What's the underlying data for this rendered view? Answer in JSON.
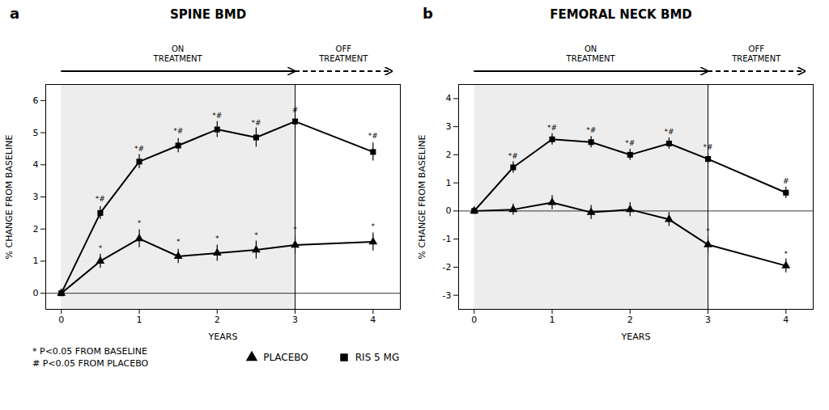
{
  "chart_data": [
    {
      "type": "line",
      "title": "SPINE BMD",
      "panel_label": "a",
      "x_label": "YEARS",
      "y_label": "% CHANGE FROM BASELINE",
      "x": [
        0,
        0.5,
        1.0,
        1.5,
        2.0,
        2.5,
        3.0,
        4.0
      ],
      "series": [
        {
          "name": "RIS 5 MG",
          "marker": "square",
          "values": [
            0,
            2.5,
            4.1,
            4.6,
            5.1,
            4.85,
            5.35,
            4.4
          ],
          "errors": [
            0.05,
            0.2,
            0.22,
            0.22,
            0.25,
            0.3,
            0.22,
            0.28
          ],
          "annotations": [
            {
              "x": 0.5,
              "y": 2.85,
              "text": "*#"
            },
            {
              "x": 1.0,
              "y": 4.42,
              "text": "*#"
            },
            {
              "x": 1.5,
              "y": 4.98,
              "text": "*#"
            },
            {
              "x": 2.0,
              "y": 5.45,
              "text": "*#"
            },
            {
              "x": 2.5,
              "y": 5.22,
              "text": "*#"
            },
            {
              "x": 3.0,
              "y": 5.62,
              "text": "#"
            },
            {
              "x": 4.0,
              "y": 4.82,
              "text": "*#"
            }
          ]
        },
        {
          "name": "PLACEBO",
          "marker": "triangle",
          "values": [
            0,
            1.0,
            1.7,
            1.15,
            1.25,
            1.35,
            1.5,
            1.6
          ],
          "errors": [
            0.05,
            0.22,
            0.28,
            0.22,
            0.25,
            0.28,
            0.28,
            0.28
          ],
          "annotations": [
            {
              "x": 0.5,
              "y": 1.32,
              "text": "*"
            },
            {
              "x": 1.0,
              "y": 2.1,
              "text": "*"
            },
            {
              "x": 1.5,
              "y": 1.52,
              "text": "*"
            },
            {
              "x": 2.0,
              "y": 1.62,
              "text": "*"
            },
            {
              "x": 2.5,
              "y": 1.72,
              "text": "*"
            },
            {
              "x": 3.0,
              "y": 1.9,
              "text": "*"
            },
            {
              "x": 4.0,
              "y": 2.0,
              "text": "*"
            }
          ]
        }
      ],
      "xlim": [
        -0.2,
        4.35
      ],
      "xticks": [
        0,
        1,
        2,
        3,
        4
      ],
      "ylim": [
        -0.5,
        6.5
      ],
      "yticks": [
        0,
        1,
        2,
        3,
        4,
        5,
        6
      ],
      "grid": false,
      "phases": [
        {
          "label": "ON\nTREATMENT",
          "x": [
            0,
            3
          ]
        },
        {
          "label": "OFF\nTREATMENT",
          "x": [
            3,
            4.25
          ]
        }
      ]
    },
    {
      "type": "line",
      "title": "FEMORAL NECK BMD",
      "panel_label": "b",
      "x_label": "YEARS",
      "y_label": "% CHANGE FROM BASELINE",
      "x": [
        0,
        0.5,
        1.0,
        1.5,
        2.0,
        2.5,
        3.0,
        4.0
      ],
      "series": [
        {
          "name": "RIS 5 MG",
          "marker": "square",
          "values": [
            0,
            1.55,
            2.55,
            2.45,
            2.0,
            2.4,
            1.85,
            0.65
          ],
          "errors": [
            0.05,
            0.2,
            0.2,
            0.2,
            0.2,
            0.2,
            0.2,
            0.2
          ],
          "annotations": [
            {
              "x": 0.5,
              "y": 1.88,
              "text": "*#"
            },
            {
              "x": 1.0,
              "y": 2.88,
              "text": "*#"
            },
            {
              "x": 1.5,
              "y": 2.78,
              "text": "*#"
            },
            {
              "x": 2.0,
              "y": 2.32,
              "text": "*#"
            },
            {
              "x": 2.5,
              "y": 2.72,
              "text": "*#"
            },
            {
              "x": 3.0,
              "y": 2.18,
              "text": "*#"
            },
            {
              "x": 4.0,
              "y": 0.98,
              "text": "#"
            }
          ]
        },
        {
          "name": "PLACEBO",
          "marker": "triangle",
          "values": [
            0,
            0.05,
            0.3,
            -0.05,
            0.05,
            -0.3,
            -1.2,
            -1.95
          ],
          "errors": [
            0.05,
            0.2,
            0.25,
            0.25,
            0.25,
            0.25,
            0.3,
            0.25
          ],
          "annotations": [
            {
              "x": 3.0,
              "y": -0.82,
              "text": "*"
            },
            {
              "x": 4.0,
              "y": -1.62,
              "text": "*"
            }
          ]
        }
      ],
      "xlim": [
        -0.2,
        4.35
      ],
      "xticks": [
        0,
        1,
        2,
        3,
        4
      ],
      "ylim": [
        -3.5,
        4.5
      ],
      "yticks": [
        -3,
        -2,
        -1,
        0,
        1,
        2,
        3,
        4
      ],
      "grid": false,
      "phases": [
        {
          "label": "ON\nTREATMENT",
          "x": [
            0,
            3
          ]
        },
        {
          "label": "OFF\nTREATMENT",
          "x": [
            3,
            4.25
          ]
        }
      ]
    }
  ],
  "footnotes": [
    "* P<0.05 FROM BASELINE",
    "# P<0.05 FROM PLACEBO"
  ],
  "legend": "bottom"
}
